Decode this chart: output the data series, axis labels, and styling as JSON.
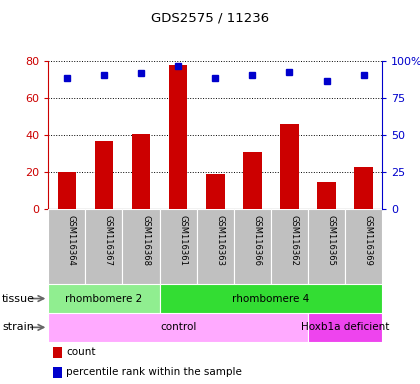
{
  "title": "GDS2575 / 11236",
  "samples": [
    "GSM116364",
    "GSM116367",
    "GSM116368",
    "GSM116361",
    "GSM116363",
    "GSM116366",
    "GSM116362",
    "GSM116365",
    "GSM116369"
  ],
  "counts": [
    20,
    37,
    41,
    78,
    19,
    31,
    46,
    15,
    23
  ],
  "percentiles": [
    89,
    91,
    92,
    97,
    89,
    91,
    93,
    87,
    91
  ],
  "ylim_left": [
    0,
    80
  ],
  "ylim_right": [
    0,
    100
  ],
  "yticks_left": [
    0,
    20,
    40,
    60,
    80
  ],
  "ytick_labels_right": [
    "0",
    "25",
    "50",
    "75",
    "100%"
  ],
  "yticks_right": [
    0,
    25,
    50,
    75,
    100
  ],
  "bar_color": "#cc0000",
  "dot_color": "#0000cc",
  "cell_color": "#c0c0c0",
  "tissue_groups": [
    {
      "label": "rhombomere 2",
      "start": 0,
      "end": 3,
      "color": "#90ee90"
    },
    {
      "label": "rhombomere 4",
      "start": 3,
      "end": 9,
      "color": "#33dd33"
    }
  ],
  "strain_groups": [
    {
      "label": "control",
      "start": 0,
      "end": 7,
      "color": "#ffaaff"
    },
    {
      "label": "Hoxb1a deficient",
      "start": 7,
      "end": 9,
      "color": "#ee44ee"
    }
  ],
  "tissue_label": "tissue",
  "strain_label": "strain",
  "legend_count_label": "count",
  "legend_pct_label": "percentile rank within the sample"
}
